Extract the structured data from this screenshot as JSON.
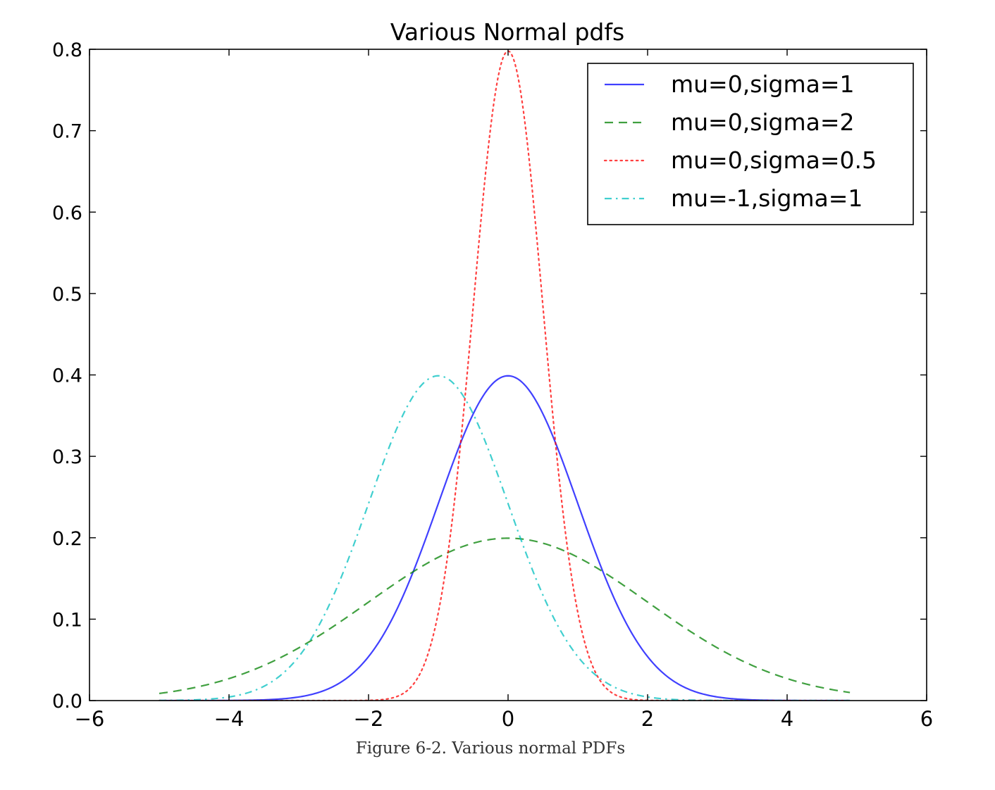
{
  "chart_data": {
    "type": "line",
    "title": "Various Normal pdfs",
    "xlabel": "",
    "ylabel": "",
    "xlim": [
      -6,
      6
    ],
    "ylim": [
      0,
      0.8
    ],
    "x_ticks": [
      -6,
      -4,
      -2,
      0,
      2,
      4,
      6
    ],
    "x_tick_labels": [
      "−6",
      "−4",
      "−2",
      "0",
      "2",
      "4",
      "6"
    ],
    "y_ticks": [
      0,
      0.1,
      0.2,
      0.3,
      0.4,
      0.5,
      0.6,
      0.7,
      0.8
    ],
    "y_tick_labels": [
      "0.0",
      "0.1",
      "0.2",
      "0.3",
      "0.4",
      "0.5",
      "0.6",
      "0.7",
      "0.8"
    ],
    "grid": false,
    "legend_position": "top-right",
    "x_range_plotted": [
      -5,
      4.9
    ],
    "series": [
      {
        "name": "mu=0,sigma=1",
        "mu": 0,
        "sigma": 1,
        "color": "#0000ff",
        "style": "solid"
      },
      {
        "name": "mu=0,sigma=2",
        "mu": 0,
        "sigma": 2,
        "color": "#008000",
        "style": "dashed"
      },
      {
        "name": "mu=0,sigma=0.5",
        "mu": 0,
        "sigma": 0.5,
        "color": "#ff0000",
        "style": "dotted"
      },
      {
        "name": "mu=-1,sigma=1",
        "mu": -1,
        "sigma": 1,
        "color": "#00bfbf",
        "style": "dashdot"
      }
    ]
  },
  "caption": "Figure 6-2. Various normal PDFs"
}
